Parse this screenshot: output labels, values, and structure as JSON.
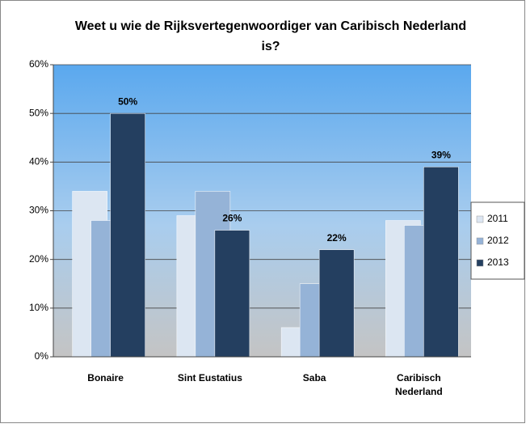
{
  "chart_data": {
    "type": "bar",
    "title": "Weet u wie de Rijksvertegenwoordiger van Caribisch Nederland is?",
    "categories": [
      "Bonaire",
      "Sint Eustatius",
      "Saba",
      "Caribisch Nederland"
    ],
    "series": [
      {
        "name": "2011",
        "color": "#dce6f2",
        "values": [
          34,
          29,
          6,
          28
        ]
      },
      {
        "name": "2012",
        "color": "#95b3d7",
        "values": [
          28,
          34,
          15,
          27
        ]
      },
      {
        "name": "2013",
        "color": "#243f60",
        "values": [
          50,
          26,
          22,
          39
        ],
        "value_labels": [
          "50%",
          "26%",
          "22%",
          "39%"
        ]
      }
    ],
    "ylim": [
      0,
      60
    ],
    "yticks": [
      {
        "value": 0,
        "label": "0%"
      },
      {
        "value": 10,
        "label": "10%"
      },
      {
        "value": 20,
        "label": "20%"
      },
      {
        "value": 30,
        "label": "30%"
      },
      {
        "value": 40,
        "label": "40%"
      },
      {
        "value": 50,
        "label": "50%"
      },
      {
        "value": 60,
        "label": "60%"
      }
    ],
    "grid": true,
    "legend": "right"
  }
}
